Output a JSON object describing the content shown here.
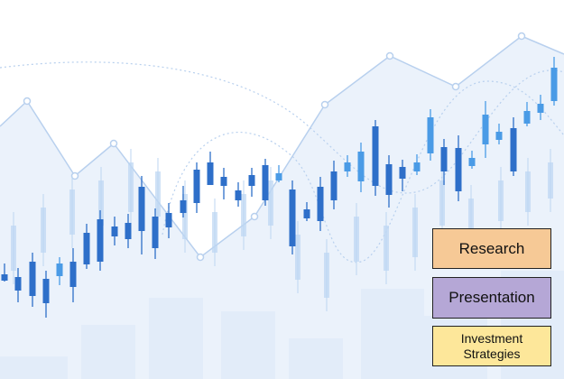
{
  "background": {
    "description_icon": "stock-candlestick-chart-icon",
    "colors": {
      "candle": "#2e6fc9",
      "candle_faint": "#bcd6f2",
      "area": "#dbe8f7",
      "line": "#b8d0ee",
      "bars": "#e6eefa"
    }
  },
  "buttons": [
    {
      "label": "Research",
      "color": "#f6c996"
    },
    {
      "label": "Presentation",
      "color": "#b5a7d6"
    },
    {
      "label": "Investment Strategies",
      "color": "#fde79a"
    }
  ]
}
